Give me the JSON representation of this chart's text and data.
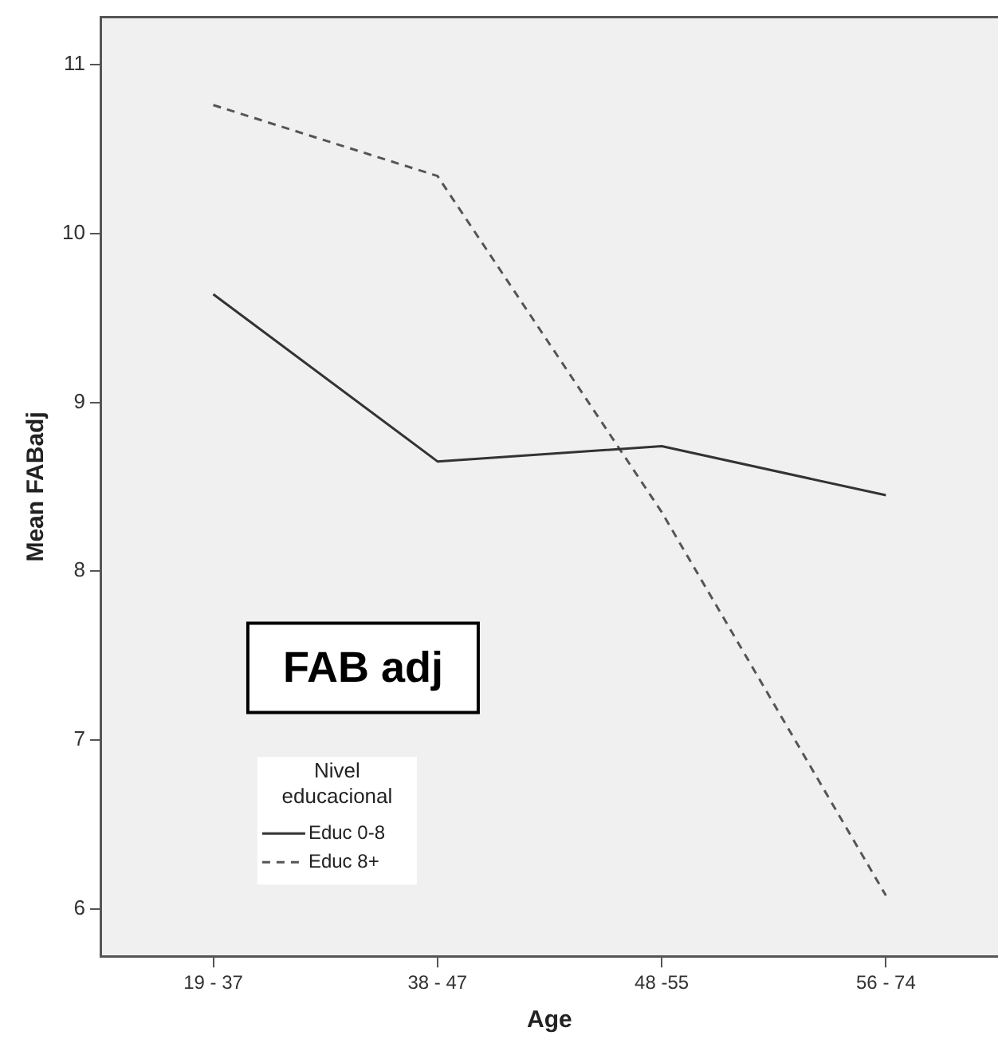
{
  "chart_data": {
    "type": "line",
    "xlabel": "Age",
    "ylabel": "Mean FABadj",
    "categories": [
      "19 - 37",
      "38 - 47",
      "48 -55",
      "56 - 74"
    ],
    "series": [
      {
        "name": "Educ 0-8",
        "color": "#333333",
        "line_style": "solid",
        "values": [
          9.64,
          8.65,
          8.74,
          8.45
        ]
      },
      {
        "name": "Educ 8+",
        "color": "#555555",
        "line_style": "dashed",
        "values": [
          10.76,
          10.34,
          8.35,
          6.08
        ]
      }
    ],
    "ylim": [
      5.72,
      11.28
    ],
    "yticks": [
      6,
      7,
      8,
      9,
      10,
      11
    ],
    "legend": "bottom left",
    "legend_title": "Nivel educacional",
    "marker": "none",
    "annotations": [
      "FAB adj"
    ]
  }
}
